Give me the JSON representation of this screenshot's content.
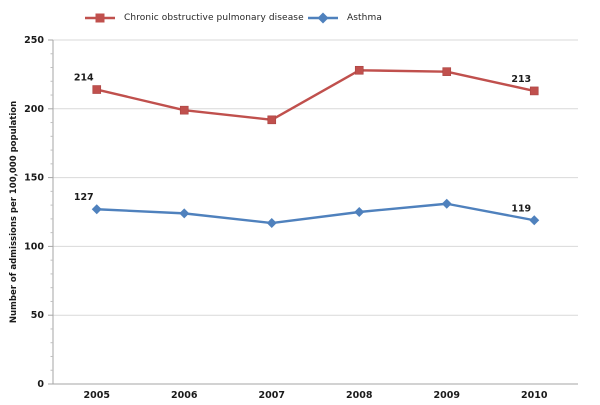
{
  "chart_data": {
    "type": "line",
    "categories": [
      "2005",
      "2006",
      "2007",
      "2008",
      "2009",
      "2010"
    ],
    "series": [
      {
        "name": "Chronic obstructive pulmonary disease",
        "color": "#c0504d",
        "marker": "square",
        "values": [
          214,
          199,
          192,
          228,
          227,
          213
        ],
        "point_labels": {
          "0": "214",
          "5": "213"
        }
      },
      {
        "name": "Asthma",
        "color": "#4f81bd",
        "marker": "diamond",
        "values": [
          127,
          124,
          117,
          125,
          131,
          119
        ],
        "point_labels": {
          "0": "127",
          "5": "119"
        }
      }
    ],
    "title": "",
    "xlabel": "",
    "ylabel": "Number of admissions per 100,000 population",
    "ylim": [
      0,
      250
    ],
    "yticks": [
      0,
      50,
      100,
      150,
      200,
      250
    ],
    "minor_tick_step": 10,
    "grid": true,
    "legend_position": "top",
    "colors": {
      "gridline": "#d9d9d9",
      "axis": "#a6a6a6",
      "minor_tick": "#bfbfbf",
      "tick_text": "#1a1a1a",
      "data_label_text": "#1a1a1a"
    }
  }
}
